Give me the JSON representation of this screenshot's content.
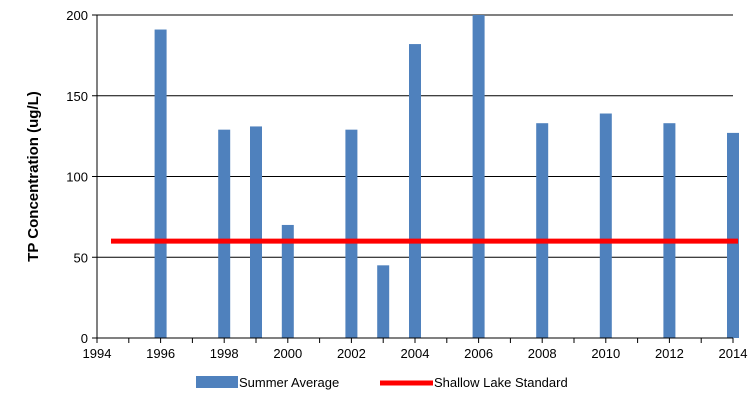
{
  "chart_data": {
    "type": "bar",
    "title": "",
    "xlabel": "",
    "ylabel": "TP Concentration (ug/L)",
    "xlim": [
      1994,
      2014
    ],
    "ylim": [
      0,
      200
    ],
    "x_ticks": [
      "1994",
      "1996",
      "1998",
      "2000",
      "2002",
      "2004",
      "2006",
      "2008",
      "2010",
      "2012",
      "2014"
    ],
    "y_ticks": [
      "0",
      "50",
      "100",
      "150",
      "200"
    ],
    "grid": "horizontal",
    "legend_position": "bottom",
    "series": [
      {
        "name": "Summer Average",
        "type": "bar",
        "color": "#4F81BD",
        "points": [
          {
            "x": 1996,
            "y": 191
          },
          {
            "x": 1998,
            "y": 129
          },
          {
            "x": 1999,
            "y": 131
          },
          {
            "x": 2000,
            "y": 70
          },
          {
            "x": 2002,
            "y": 129
          },
          {
            "x": 2003,
            "y": 45
          },
          {
            "x": 2004,
            "y": 182
          },
          {
            "x": 2006,
            "y": 200
          },
          {
            "x": 2008,
            "y": 133
          },
          {
            "x": 2010,
            "y": 139
          },
          {
            "x": 2012,
            "y": 133
          },
          {
            "x": 2014,
            "y": 127
          }
        ]
      },
      {
        "name": "Shallow Lake Standard",
        "type": "line",
        "color": "#FF0000",
        "points": [
          {
            "x": 1994,
            "y": 60
          },
          {
            "x": 2014,
            "y": 60
          }
        ]
      }
    ]
  }
}
